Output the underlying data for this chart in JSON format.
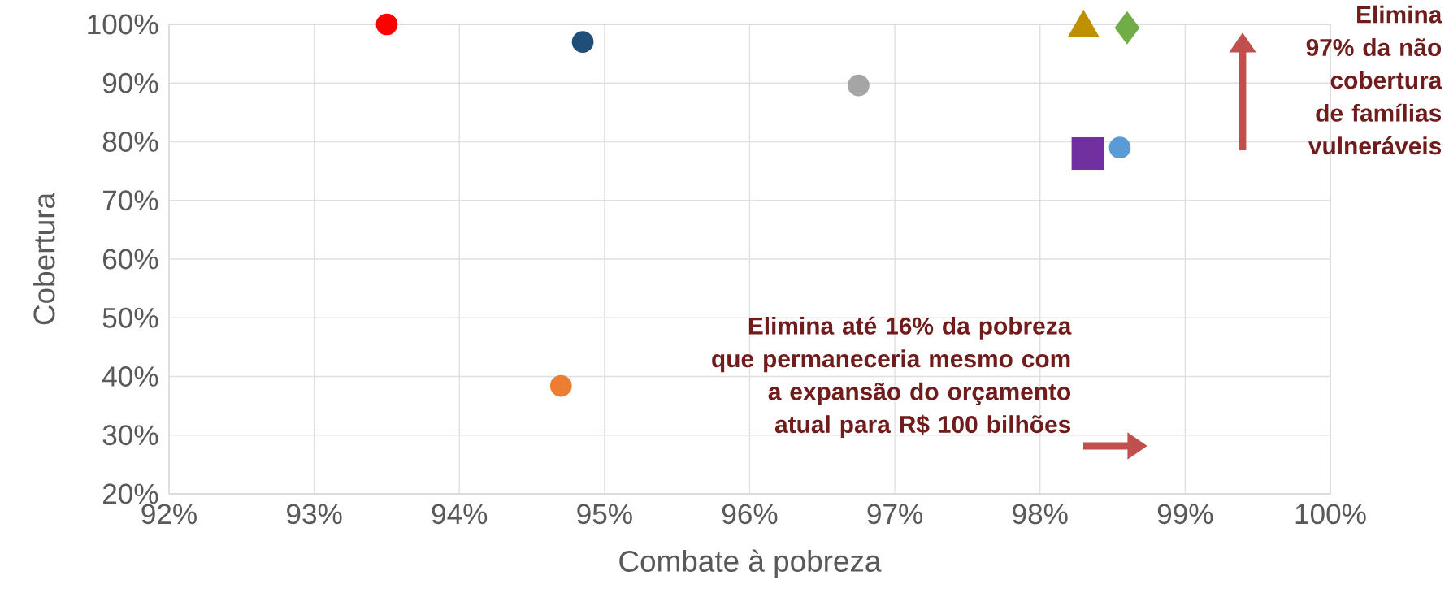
{
  "chart_data": {
    "type": "scatter",
    "xlabel": "Combate à pobreza",
    "ylabel": "Cobertura",
    "series": [
      {
        "color": "#ff0000",
        "marker": "circle",
        "x": [
          93.5
        ],
        "values": [
          100
        ]
      },
      {
        "color": "#1f4e79",
        "marker": "circle",
        "x": [
          94.85
        ],
        "values": [
          97
        ]
      },
      {
        "color": "#a5a5a5",
        "marker": "circle",
        "x": [
          96.75
        ],
        "values": [
          89.6
        ]
      },
      {
        "color": "#ed7d31",
        "marker": "circle",
        "x": [
          94.7
        ],
        "values": [
          38.4
        ]
      },
      {
        "color": "#bf9000",
        "marker": "triangle",
        "x": [
          98.3
        ],
        "values": [
          99.4
        ]
      },
      {
        "color": "#70ad47",
        "marker": "diamond",
        "x": [
          98.6
        ],
        "values": [
          99.4
        ]
      },
      {
        "color": "#7030a0",
        "marker": "square",
        "x": [
          98.33
        ],
        "values": [
          78
        ]
      },
      {
        "color": "#5b9bd5",
        "marker": "circle",
        "x": [
          98.55
        ],
        "values": [
          79
        ]
      }
    ],
    "xlim": [
      92,
      100
    ],
    "ylim": [
      20,
      100
    ],
    "xticks": [
      {
        "value": 92,
        "label": "92%"
      },
      {
        "value": 93,
        "label": "93%"
      },
      {
        "value": 94,
        "label": "94%"
      },
      {
        "value": 95,
        "label": "95%"
      },
      {
        "value": 96,
        "label": "96%"
      },
      {
        "value": 97,
        "label": "97%"
      },
      {
        "value": 98,
        "label": "98%"
      },
      {
        "value": 99,
        "label": "99%"
      },
      {
        "value": 100,
        "label": "100%"
      }
    ],
    "yticks": [
      {
        "value": 20,
        "label": "20%"
      },
      {
        "value": 30,
        "label": "30%"
      },
      {
        "value": 40,
        "label": "40%"
      },
      {
        "value": 50,
        "label": "50%"
      },
      {
        "value": 60,
        "label": "60%"
      },
      {
        "value": 70,
        "label": "70%"
      },
      {
        "value": 80,
        "label": "80%"
      },
      {
        "value": 90,
        "label": "90%"
      },
      {
        "value": 100,
        "label": "100%"
      }
    ],
    "grid": true,
    "annotations": [
      "Elimina 97% da não cobertura de famílias vulneráveis",
      "Elimina até 16% da pobreza que permaneceria mesmo com a expansão do orçamento atual para R$ 100 bilhões"
    ]
  }
}
